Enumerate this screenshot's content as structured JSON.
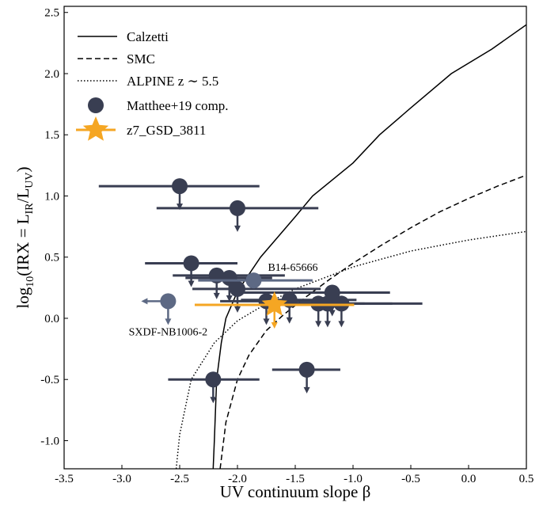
{
  "chart_data": {
    "type": "scatter",
    "xlabel": "UV continuum slope β",
    "ylabel": [
      "log",
      "10",
      "(IRX = L",
      "IR",
      "/L",
      "UV",
      ")"
    ],
    "xlim": [
      -3.5,
      0.5
    ],
    "ylim": [
      -1.23,
      2.55
    ],
    "xticks": [
      -3.5,
      {
        "value": -3,
        "label": "-3.0"
      },
      -2.5,
      {
        "value": -2,
        "label": "-2.0"
      },
      -1.5,
      {
        "value": -1,
        "label": "-1.0"
      },
      -0.5,
      {
        "value": 0,
        "label": "0.0"
      },
      0.5
    ],
    "yticks": [
      {
        "value": -1,
        "label": "-1.0"
      },
      -0.5,
      {
        "value": 0,
        "label": "0.0"
      },
      0.5,
      {
        "value": 1,
        "label": "1.0"
      },
      1.5,
      {
        "value": 2,
        "label": "2.0"
      },
      2.5
    ],
    "legend": "upper left",
    "series": [
      {
        "name": "Calzetti",
        "kind": "line",
        "style": "solid",
        "color": "#000000",
        "x": [
          -2.21,
          -2.2,
          -2.18,
          -2.14,
          -2.1,
          -2.0,
          -1.8,
          -1.5,
          -1.35,
          -1.0,
          -0.77,
          -0.5,
          -0.15,
          0.2,
          0.5
        ],
        "values": [
          -1.23,
          -1.0,
          -0.5,
          -0.2,
          0,
          0.22,
          0.5,
          0.83,
          1.0,
          1.27,
          1.5,
          1.72,
          2.0,
          2.2,
          2.4
        ]
      },
      {
        "name": "SMC",
        "kind": "line",
        "style": "dashed",
        "color": "#000000",
        "x": [
          -2.15,
          -2.1,
          -2.0,
          -1.9,
          -1.75,
          -1.6,
          -1.4,
          -1.2,
          -1.0,
          -0.75,
          -0.5,
          -0.25,
          0,
          0.25,
          0.5
        ],
        "values": [
          -1.23,
          -0.85,
          -0.5,
          -0.3,
          -0.1,
          0.03,
          0.18,
          0.32,
          0.45,
          0.6,
          0.74,
          0.87,
          0.98,
          1.08,
          1.17
        ]
      },
      {
        "name": "ALPINE z ∼ 5.5",
        "kind": "line",
        "style": "dotted",
        "color": "#000000",
        "x": [
          -2.53,
          -2.5,
          -2.4,
          -2.2,
          -2.0,
          -1.75,
          -1.5,
          -1.25,
          -1.0,
          -0.5,
          0,
          0.5
        ],
        "values": [
          -1.23,
          -0.95,
          -0.5,
          -0.2,
          -0.02,
          0.12,
          0.24,
          0.33,
          0.42,
          0.55,
          0.64,
          0.71
        ]
      },
      {
        "name": "Matthee+19 comp.",
        "kind": "points",
        "marker": "circle",
        "color": "#393e52",
        "highlight_color": "#5d6984",
        "x": [
          -2.5,
          -2.0,
          -2.4,
          -2.18,
          -2.07,
          -2.0,
          -1.75,
          -1.55,
          -1.3,
          -1.22,
          -1.18,
          -1.1,
          -2.21,
          -1.4,
          -1.86,
          -2.6
        ],
        "values": [
          1.08,
          0.9,
          0.45,
          0.35,
          0.33,
          0.24,
          0.14,
          0.15,
          0.12,
          0.12,
          0.21,
          0.12,
          -0.5,
          -0.42,
          0.31,
          0.14
        ],
        "xlo": [
          -3.2,
          -2.7,
          -2.8,
          -2.56,
          -2.45,
          -2.39,
          -2.15,
          -1.97,
          -1.73,
          -1.62,
          -2.03,
          -1.55,
          -2.6,
          -1.7,
          -2.34,
          null
        ],
        "xhi": [
          -1.81,
          -1.3,
          -2.0,
          -1.59,
          -1.7,
          -1.28,
          -1.16,
          -0.97,
          -0.9,
          -0.66,
          -0.68,
          -0.4,
          -1.81,
          -1.11,
          -1.35,
          null
        ],
        "y_upper_limit": [
          true,
          true,
          true,
          true,
          true,
          true,
          true,
          true,
          true,
          true,
          true,
          true,
          true,
          true,
          false,
          true
        ],
        "x_upper_limit": [
          false,
          false,
          false,
          false,
          false,
          false,
          false,
          false,
          false,
          false,
          false,
          false,
          false,
          false,
          false,
          true
        ],
        "labels": [
          null,
          null,
          null,
          null,
          null,
          null,
          null,
          null,
          null,
          null,
          null,
          null,
          null,
          null,
          "B14-65666",
          "SXDF-NB1006-2"
        ]
      },
      {
        "name": "z7_GSD_3811",
        "kind": "points",
        "marker": "star",
        "color": "#f5a623",
        "x": [
          -1.68
        ],
        "values": [
          0.11
        ],
        "xlo": [
          -2.37
        ],
        "xhi": [
          -0.99
        ],
        "y_upper_limit": [
          true
        ],
        "x_upper_limit": [
          false
        ],
        "labels": [
          null
        ]
      }
    ]
  }
}
